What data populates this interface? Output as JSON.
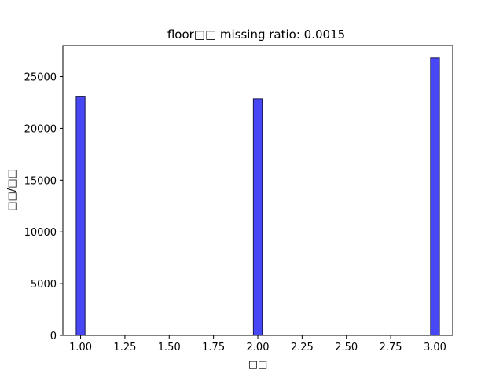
{
  "chart_data": {
    "type": "bar",
    "title": "floor□□  missing ratio: 0.0015",
    "xlabel": "□□",
    "ylabel": "□□/□□",
    "x": [
      1.0,
      2.0,
      3.0
    ],
    "values": [
      23100,
      22850,
      26800
    ],
    "bin_width": 0.05,
    "xlim": [
      0.9,
      3.1
    ],
    "ylim": [
      0,
      28000
    ],
    "xticks": [
      "1.00",
      "1.25",
      "1.50",
      "1.75",
      "2.00",
      "2.25",
      "2.50",
      "2.75",
      "3.00"
    ],
    "yticks": [
      "0",
      "5000",
      "10000",
      "15000",
      "20000",
      "25000"
    ],
    "bar_color": "#4747f5",
    "bar_edge_color": "#1a1a4a",
    "grid": false,
    "legend": false
  }
}
